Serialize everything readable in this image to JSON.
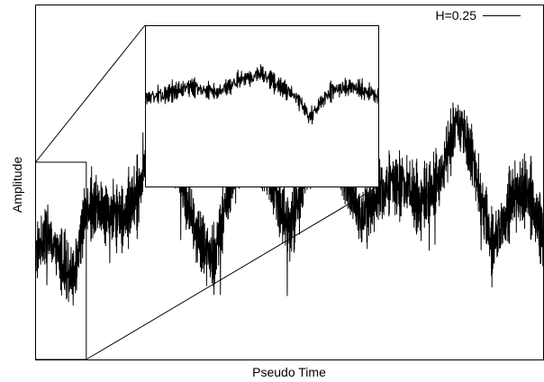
{
  "chart_data": {
    "type": "line",
    "xlabel": "Pseudo Time",
    "ylabel": "Amplitude",
    "legend": [
      {
        "label": "H=0.25",
        "color": "#000000",
        "placement": "top-right"
      }
    ],
    "grid": false,
    "ticks_shown": false,
    "series": [
      {
        "name": "H=0.25",
        "color": "#000000",
        "profile_t": [
          0,
          0.02,
          0.05,
          0.075,
          0.1,
          0.13,
          0.17,
          0.2,
          0.23,
          0.255,
          0.29,
          0.32,
          0.35,
          0.385,
          0.42,
          0.46,
          0.5,
          0.53,
          0.56,
          0.6,
          0.64,
          0.68,
          0.72,
          0.76,
          0.8,
          0.83,
          0.86,
          0.9,
          0.94,
          0.97,
          1.0
        ],
        "profile_v": [
          0.3,
          0.36,
          0.28,
          0.24,
          0.44,
          0.42,
          0.4,
          0.46,
          0.68,
          0.66,
          0.48,
          0.34,
          0.28,
          0.5,
          0.64,
          0.52,
          0.36,
          0.52,
          0.62,
          0.56,
          0.4,
          0.48,
          0.5,
          0.44,
          0.52,
          0.68,
          0.58,
          0.32,
          0.46,
          0.48,
          0.34
        ]
      }
    ],
    "inset": {
      "kind": "zoom",
      "range_start": 0.0,
      "range_end": 0.1,
      "profile_t": [
        0,
        0.1,
        0.2,
        0.3,
        0.4,
        0.5,
        0.6,
        0.67,
        0.7,
        0.73,
        0.8,
        0.9,
        1.0
      ],
      "profile_v": [
        0.55,
        0.58,
        0.62,
        0.58,
        0.66,
        0.7,
        0.6,
        0.52,
        0.42,
        0.48,
        0.6,
        0.62,
        0.55
      ]
    }
  }
}
